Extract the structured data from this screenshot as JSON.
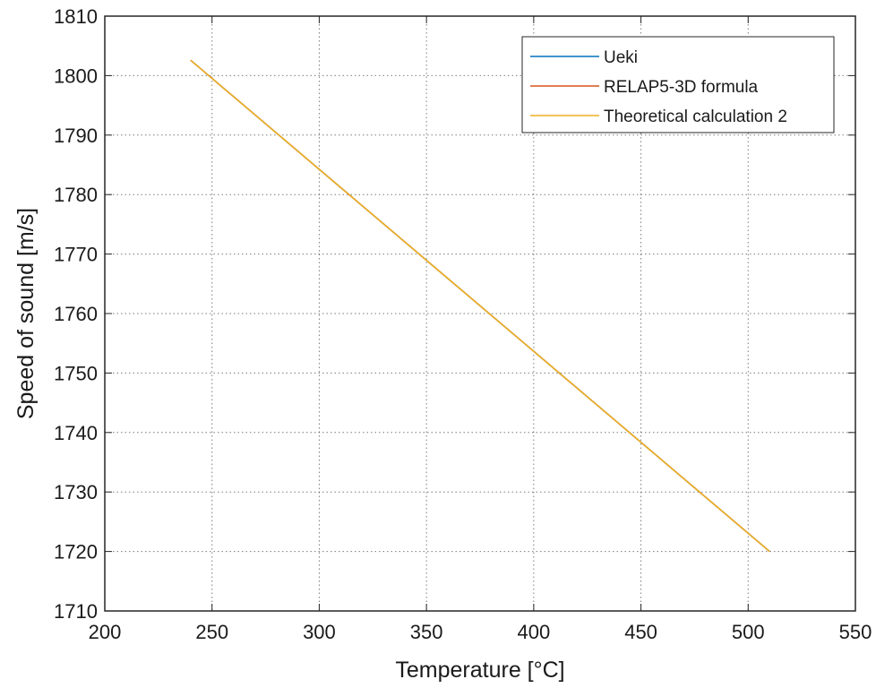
{
  "chart_data": {
    "type": "line",
    "title": "",
    "xlabel": "Temperature [°C]",
    "ylabel": "Speed of sound [m/s]",
    "xlim": [
      200,
      550
    ],
    "ylim": [
      1710,
      1810
    ],
    "xticks": [
      200,
      250,
      300,
      350,
      400,
      450,
      500,
      550
    ],
    "yticks": [
      1710,
      1720,
      1730,
      1740,
      1750,
      1760,
      1770,
      1780,
      1790,
      1800,
      1810
    ],
    "grid": true,
    "legend_position": "top-right",
    "series": [
      {
        "name": "Ueki",
        "color": "#0072BD",
        "x": [
          240,
          510
        ],
        "y": [
          1802.6,
          1720.0
        ]
      },
      {
        "name": "RELAP5-3D formula",
        "color": "#D95319",
        "x": [
          240,
          510
        ],
        "y": [
          1802.6,
          1720.0
        ]
      },
      {
        "name": "Theoretical calculation 2",
        "color": "#EDB120",
        "x": [
          240,
          510
        ],
        "y": [
          1802.6,
          1720.0
        ]
      }
    ]
  }
}
